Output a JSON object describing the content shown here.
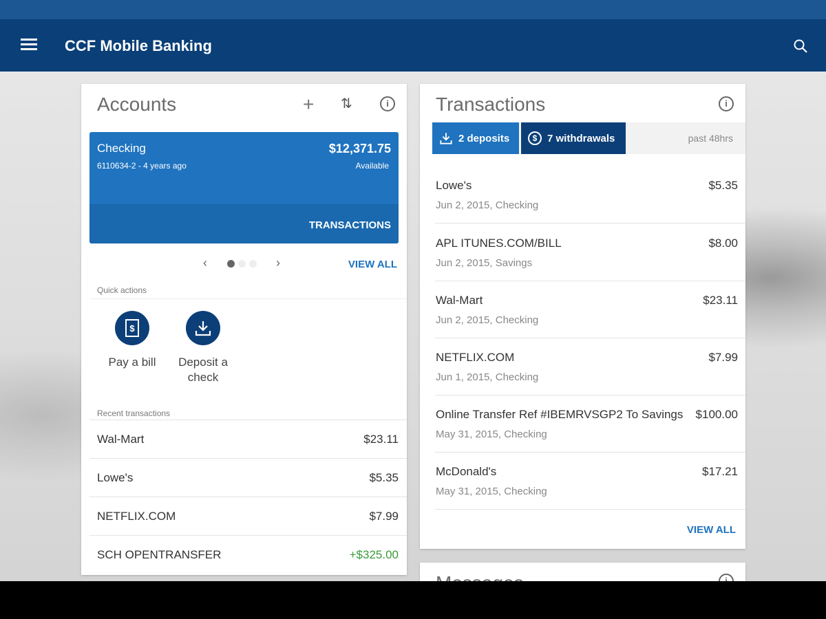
{
  "app": {
    "title": "CCF Mobile Banking"
  },
  "accounts": {
    "title": "Accounts",
    "account": {
      "name": "Checking",
      "number": "6110634-2 - 4 years ago",
      "balance": "$12,371.75",
      "balance_label": "Available",
      "transactions_label": "TRANSACTIONS"
    },
    "pager": {
      "pages": 3,
      "current": 1
    },
    "view_all": "VIEW ALL",
    "quick_actions_label": "Quick actions",
    "quick_actions": [
      {
        "label": "Pay a bill",
        "icon": "bill-icon"
      },
      {
        "label": "Deposit a check",
        "icon": "deposit-icon"
      }
    ],
    "recent_label": "Recent transactions",
    "recent": [
      {
        "name": "Wal-Mart",
        "amount": "$23.11"
      },
      {
        "name": "Lowe's",
        "amount": "$5.35"
      },
      {
        "name": "NETFLIX.COM",
        "amount": "$7.99"
      },
      {
        "name": "SCH OPENTRANSFER",
        "amount": "+$325.00",
        "color": "#3a9a3a"
      }
    ]
  },
  "transactions": {
    "title": "Transactions",
    "deposits": "2 deposits",
    "withdrawals": "7 withdrawals",
    "period": "past 48hrs",
    "items": [
      {
        "name": "Lowe's",
        "date": "Jun 2, 2015, Checking",
        "amount": "$5.35"
      },
      {
        "name": "APL ITUNES.COM/BILL",
        "date": "Jun 2, 2015, Savings",
        "amount": "$8.00"
      },
      {
        "name": "Wal-Mart",
        "date": "Jun 2, 2015, Checking",
        "amount": "$23.11"
      },
      {
        "name": "NETFLIX.COM",
        "date": "Jun 1, 2015, Checking",
        "amount": "$7.99"
      },
      {
        "name": "Online Transfer Ref #IBEMRVSGP2 To Savings",
        "date": "May 31, 2015, Checking",
        "amount": "$100.00"
      },
      {
        "name": "McDonald's",
        "date": "May 31, 2015, Checking",
        "amount": "$17.21"
      }
    ],
    "view_all": "VIEW ALL"
  },
  "messages": {
    "title": "Messages"
  },
  "colors": {
    "appbar": "#0a3f78",
    "accent": "#1f73bf",
    "positive": "#3a9a3a"
  }
}
